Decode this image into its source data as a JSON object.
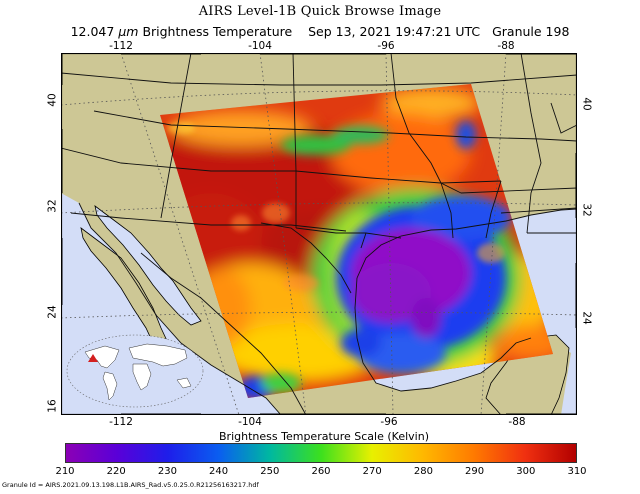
{
  "header": {
    "title": "AIRS Level-1B Quick Browse Image",
    "wavelength": "12.047",
    "unit": "μm",
    "product": "Brightness Temperature",
    "datetime": "Sep 13, 2021 19:47:21 UTC",
    "granule": "Granule 198"
  },
  "map": {
    "longitude_ticks_top": [
      "-112",
      "-104",
      "-96",
      "-88"
    ],
    "longitude_ticks_bottom": [
      "-112",
      "-104",
      "-96",
      "-88"
    ],
    "latitude_ticks_left": [
      "40",
      "32",
      "24",
      "16"
    ],
    "latitude_ticks_right": [
      "40",
      "32",
      "24"
    ],
    "colors": {
      "land": "#cdc795",
      "ocean": "#d3ddf7",
      "border": "#000000",
      "gridline": "#555555"
    },
    "inset": {
      "label": "world-locator-map",
      "marker_color": "#d42020"
    }
  },
  "colorbar": {
    "label": "Brightness Temperature Scale (Kelvin)",
    "ticks": [
      "210",
      "220",
      "230",
      "240",
      "250",
      "260",
      "270",
      "280",
      "290",
      "300",
      "310"
    ],
    "min": 210,
    "max": 310,
    "stops": [
      "#8b00b5",
      "#5a00d8",
      "#1e1eea",
      "#0a5ef0",
      "#00b8a0",
      "#3ce01e",
      "#e8f000",
      "#ffb800",
      "#ff7a00",
      "#f03010",
      "#b20000"
    ]
  },
  "footer": {
    "granule_id": "Granule Id = AIRS.2021.09.13.198.L1B.AIRS_Rad.v5.0.25.0.R21256163217.hdf"
  }
}
